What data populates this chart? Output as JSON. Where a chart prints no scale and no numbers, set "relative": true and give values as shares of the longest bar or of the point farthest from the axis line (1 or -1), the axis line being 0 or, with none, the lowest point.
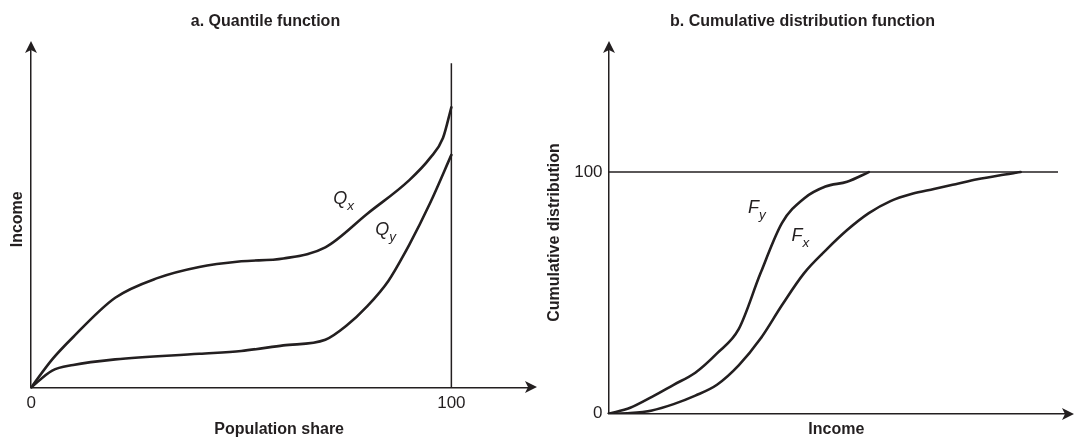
{
  "chart_data": [
    {
      "type": "line",
      "title": "a. Quantile function",
      "xlabel": "Population share",
      "ylabel": "Income",
      "relative": true,
      "xlim": [
        0,
        118
      ],
      "xticks": [
        0,
        100
      ],
      "grid": false,
      "legend": false,
      "marker": "none",
      "line_style": "solid",
      "tick_labels": "x",
      "series": [
        {
          "name": "Q$_{x}$",
          "color": "#231f20",
          "x": [
            0,
            5,
            10,
            20,
            30,
            40,
            50,
            60,
            70,
            80,
            90,
            95,
            98,
            100
          ],
          "values": [
            0,
            0.1,
            0.18,
            0.32,
            0.39,
            0.43,
            0.45,
            0.46,
            0.5,
            0.62,
            0.74,
            0.82,
            0.89,
            1
          ]
        },
        {
          "name": "Q$_{y}$",
          "color": "#231f20",
          "x": [
            0,
            5,
            10,
            20,
            40,
            50,
            60,
            70,
            75,
            80,
            85,
            90,
            95,
            100
          ],
          "values": [
            0,
            0.06,
            0.08,
            0.1,
            0.12,
            0.13,
            0.15,
            0.17,
            0.22,
            0.29,
            0.38,
            0.51,
            0.66,
            0.83
          ]
        }
      ],
      "ref_lines": [
        {
          "axis": "x",
          "value": 100,
          "color": "#231f20"
        }
      ]
    },
    {
      "type": "line",
      "title": "b. Cumulative distribution function",
      "xlabel": "Income",
      "ylabel": "Cumulative distribution",
      "ylim": [
        0,
        150
      ],
      "yticks": [
        0,
        100
      ],
      "grid": false,
      "legend": false,
      "marker": "none",
      "line_style": "solid",
      "tick_labels": "y",
      "categories": [
        null,
        null,
        null,
        null,
        null,
        null,
        null,
        null,
        null,
        null,
        null,
        null,
        null,
        null,
        null,
        null,
        null,
        null,
        null,
        null,
        null,
        null
      ],
      "series": [
        {
          "name": "F$_{y}$",
          "color": "#231f20",
          "values": [
            0,
            2.5,
            7,
            12,
            17,
            25,
            35,
            58,
            79,
            89,
            94,
            96,
            100,
            null,
            null,
            null,
            null,
            null,
            null,
            null,
            null,
            null
          ]
        },
        {
          "name": "F$_{x}$",
          "color": "#231f20",
          "values": [
            0,
            0.3,
            1.4,
            4,
            7.5,
            12,
            20,
            31,
            45,
            58,
            67.5,
            76,
            83,
            88,
            91,
            93,
            95,
            97,
            98.6,
            100,
            null,
            null
          ]
        }
      ],
      "ref_lines": [
        {
          "axis": "y",
          "value": 100,
          "color": "#231f20"
        }
      ]
    }
  ]
}
